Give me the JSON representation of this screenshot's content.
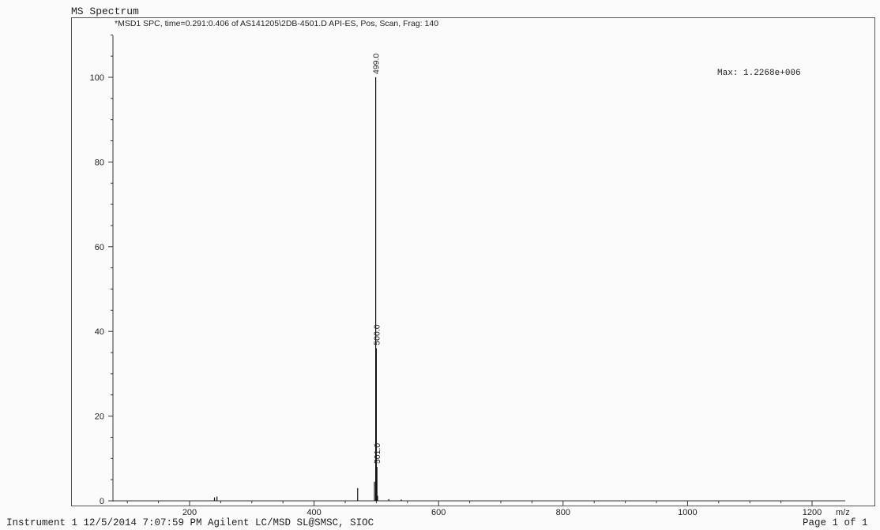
{
  "page": {
    "title": "MS Spectrum",
    "header": "*MSD1 SPC, time=0.291:0.406 of AS141205\\2DB-4501.D    API-ES, Pos, Scan, Frag: 140",
    "max_label": "Max: 1.2268e+006",
    "footer_left": "Instrument 1 12/5/2014 7:07:59 PM Agilent LC/MSD SL@SMSC, SIOC",
    "footer_right": "Page 1 of 1"
  },
  "chart_data": {
    "type": "bar",
    "title": "MS Spectrum",
    "xlabel": "m/z",
    "ylabel": "",
    "xlim": [
      75,
      1230
    ],
    "ylim": [
      0,
      110
    ],
    "x_ticks": [
      200,
      400,
      600,
      800,
      1000,
      1200
    ],
    "x_tick_labels": [
      "200",
      "400",
      "600",
      "800",
      "1000",
      "1200"
    ],
    "y_ticks": [
      0,
      20,
      40,
      60,
      80,
      100
    ],
    "y_tick_labels": [
      "0",
      "20",
      "40",
      "60",
      "80",
      "100"
    ],
    "series": [
      {
        "peaks": [
          {
            "mz": 240,
            "intensity": 0.8,
            "label": ""
          },
          {
            "mz": 244,
            "intensity": 1.0,
            "label": ""
          },
          {
            "mz": 470,
            "intensity": 3.0,
            "label": ""
          },
          {
            "mz": 497,
            "intensity": 4.5,
            "label": ""
          },
          {
            "mz": 499.0,
            "intensity": 100,
            "label": "499.0"
          },
          {
            "mz": 500.0,
            "intensity": 36,
            "label": "500.0"
          },
          {
            "mz": 501.0,
            "intensity": 8,
            "label": "501.0"
          },
          {
            "mz": 502,
            "intensity": 1.2,
            "label": ""
          },
          {
            "mz": 520,
            "intensity": 0.4,
            "label": ""
          },
          {
            "mz": 540,
            "intensity": 0.3,
            "label": ""
          }
        ]
      }
    ],
    "annotations": [
      "Max: 1.2268e+006"
    ],
    "grid": false,
    "legend": "none"
  }
}
